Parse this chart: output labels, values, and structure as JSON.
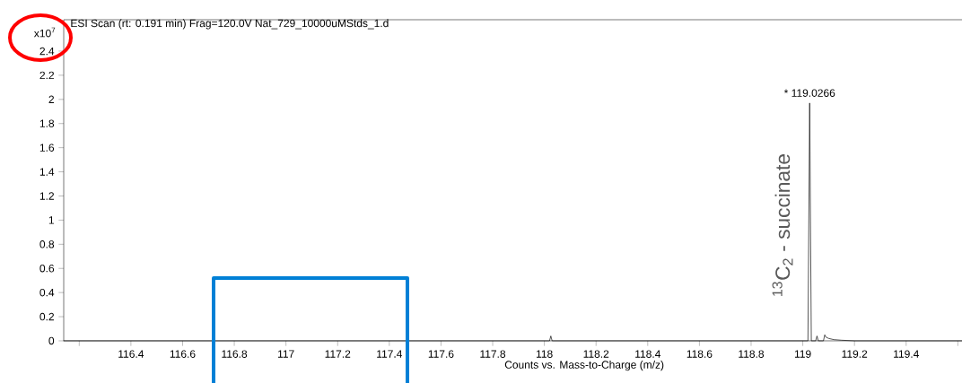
{
  "chart_data": {
    "type": "line",
    "title": "ESI Scan (rt: 0.191 min) Frag=120.0V Nat_729_10000uMStds_1.d",
    "xlabel": "Counts vs. Mass-to-Charge (m/z)",
    "ylabel": "x10$^{7}$",
    "x": [
      116.14,
      118.02,
      118.025,
      118.03,
      119.02,
      119.0266,
      119.033,
      119.05,
      119.055,
      119.06,
      119.08,
      119.085,
      119.09,
      119.1,
      119.12,
      119.15,
      119.2,
      119.63
    ],
    "series": [
      {
        "color": "#000000",
        "values": [
          0,
          0,
          0.04,
          0,
          0,
          1.97,
          0,
          0,
          0.04,
          0,
          0,
          0.05,
          0.03,
          0.02,
          0.01,
          0.005,
          0,
          0
        ]
      }
    ],
    "xlim": [
      116.14,
      119.63
    ],
    "ylim": [
      0,
      2.66
    ],
    "xticks": [
      {
        "value": 116.2,
        "label": null
      },
      116.4,
      116.6,
      116.8,
      117,
      117.2,
      117.4,
      117.6,
      117.8,
      118,
      118.2,
      118.4,
      118.6,
      118.8,
      119,
      119.2,
      119.4,
      {
        "value": 119.6,
        "label": null
      }
    ],
    "yticks": [
      0,
      0.2,
      0.4,
      0.6,
      0.8,
      1,
      1.2,
      1.4,
      1.6,
      1.8,
      2,
      2.2,
      2.4
    ],
    "annotations": [
      {
        "text": "* 119.0266",
        "x": 119.0266,
        "y": 1.97
      },
      "$^{13}$C$_{2}$ - succinate"
    ]
  }
}
